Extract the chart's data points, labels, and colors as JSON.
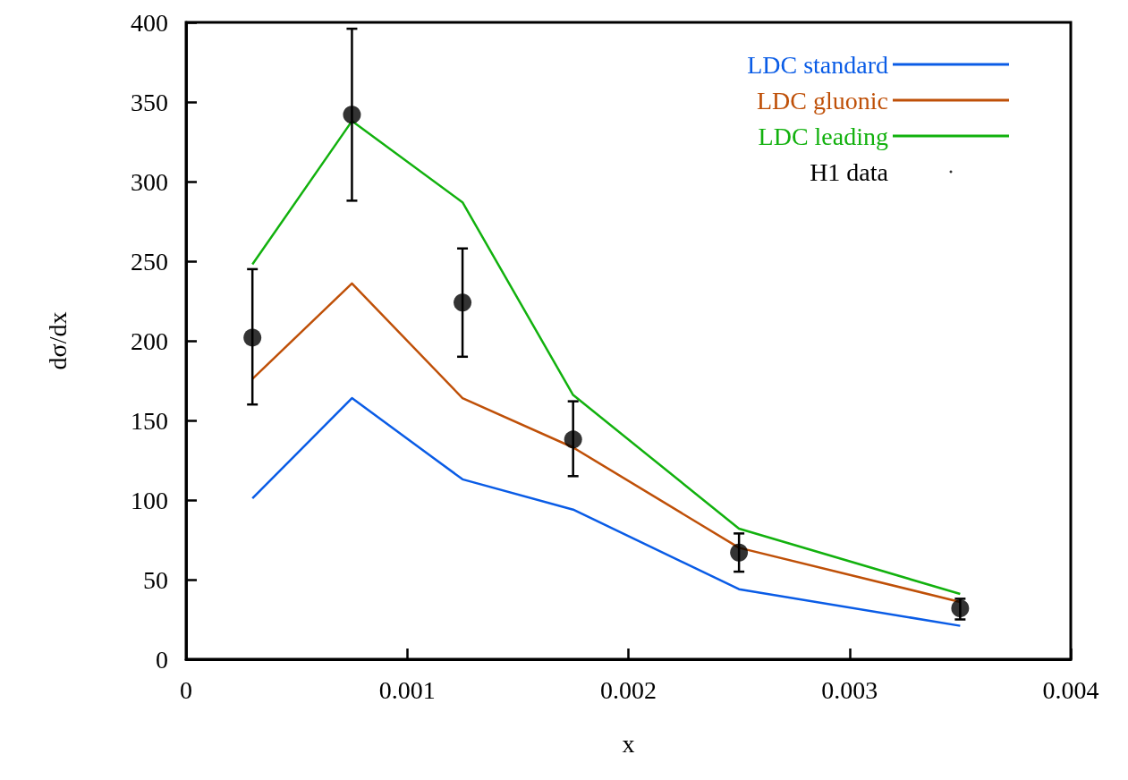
{
  "chart_data": {
    "type": "line",
    "xlabel": "x",
    "ylabel": "dσ/dx",
    "xlim": [
      0,
      0.004
    ],
    "xticks": [
      0,
      0.001,
      0.002,
      0.003,
      0.004
    ],
    "ylim": [
      0,
      400
    ],
    "yticks": [
      0,
      50,
      100,
      150,
      200,
      250,
      300,
      350,
      400
    ],
    "grid": false,
    "legend": "top right",
    "x": [
      0.0003,
      0.00075,
      0.00125,
      0.00175,
      0.0025,
      0.0035
    ],
    "series": [
      {
        "name": "LDC standard",
        "color": "#0a5ce6",
        "marker": "none",
        "values": [
          101,
          164,
          113,
          94,
          44,
          21
        ]
      },
      {
        "name": "LDC gluonic",
        "color": "#bf5008",
        "marker": "none",
        "values": [
          176,
          236,
          164,
          133,
          70,
          36
        ]
      },
      {
        "name": "LDC leading",
        "color": "#12b10e",
        "marker": "none",
        "values": [
          248,
          338,
          287,
          166,
          82,
          41
        ]
      },
      {
        "name": "H1 data",
        "type": "scatter",
        "color": "#000000",
        "marker": "circle",
        "values": [
          202,
          342,
          224,
          138,
          67,
          32
        ],
        "errors": [
          [
            160,
            245
          ],
          [
            288,
            396
          ],
          [
            190,
            258
          ],
          [
            115,
            162
          ],
          [
            55,
            79
          ],
          [
            25,
            38
          ]
        ]
      }
    ]
  }
}
